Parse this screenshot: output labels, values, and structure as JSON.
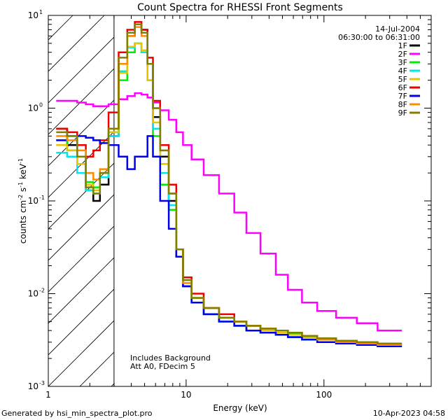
{
  "chart_data": {
    "type": "line",
    "title": "Count Spectra for RHESSI Front Segments",
    "xlabel": "Energy (keV)",
    "ylabel": "counts cm-2 s-1 keV-1",
    "ylabel_parts": {
      "base": "counts cm",
      "e1": "-2",
      "mid1": " s",
      "e2": "-1",
      "mid2": " keV",
      "e3": "-1"
    },
    "xscale": "log",
    "yscale": "log",
    "xlim": [
      1,
      600
    ],
    "ylim": [
      0.001,
      10
    ],
    "x_ticks": [
      {
        "value": 1,
        "label": "1"
      },
      {
        "value": 10,
        "label": "10"
      },
      {
        "value": 100,
        "label": "100"
      }
    ],
    "y_ticks": [
      {
        "value": 0.001,
        "base": "10",
        "exp": "-3"
      },
      {
        "value": 0.01,
        "base": "10",
        "exp": "-2"
      },
      {
        "value": 0.1,
        "base": "10",
        "exp": "-1"
      },
      {
        "value": 1,
        "base": "10",
        "exp": "0"
      },
      {
        "value": 10,
        "base": "10",
        "exp": "1"
      }
    ],
    "hatched_region": {
      "x_from": 1,
      "x_to": 3
    },
    "date": "14-Jul-2004",
    "time_range": "06:30:00 to 06:31:00",
    "annotation_lines": [
      "Includes Background",
      "Att A0, FDecim 5"
    ],
    "legend_position": "top-right",
    "series": [
      {
        "name": "1F",
        "color": "#000000",
        "values": [
          0.6,
          0.4,
          0.25,
          0.13,
          0.1,
          0.15,
          0.5,
          3,
          6,
          8,
          7,
          3,
          0.8,
          0.3,
          0.1,
          0.025,
          0.012,
          0.008,
          0.006,
          0.005,
          0.0045,
          0.004,
          0.0038,
          0.0036,
          0.0034,
          0.0032,
          0.003,
          0.0029,
          0.0028,
          0.0027
        ]
      },
      {
        "name": "2F",
        "color": "#ff00ff",
        "values": [
          1.2,
          1.2,
          1.15,
          1.1,
          1.05,
          1.05,
          1.1,
          1.25,
          1.35,
          1.45,
          1.4,
          1.3,
          1.15,
          0.95,
          0.75,
          0.55,
          0.4,
          0.28,
          0.19,
          0.12,
          0.075,
          0.045,
          0.027,
          0.016,
          0.011,
          0.008,
          0.0065,
          0.0055,
          0.0048,
          0.004
        ]
      },
      {
        "name": "3F",
        "color": "#00ee00",
        "values": [
          0.45,
          0.35,
          0.25,
          0.16,
          0.14,
          0.2,
          0.55,
          2,
          4,
          5,
          4,
          2,
          0.5,
          0.15,
          0.08,
          0.03,
          0.014,
          0.009,
          0.007,
          0.0055,
          0.005,
          0.0045,
          0.0042,
          0.004,
          0.0037,
          0.0034,
          0.0032,
          0.003,
          0.0029,
          0.0028
        ]
      },
      {
        "name": "4F",
        "color": "#00e5ee",
        "values": [
          0.33,
          0.3,
          0.2,
          0.13,
          0.12,
          0.18,
          0.5,
          2.5,
          4.5,
          5,
          4,
          2,
          0.6,
          0.2,
          0.09,
          0.03,
          0.013,
          0.008,
          0.006,
          0.005,
          0.0045,
          0.004,
          0.0038,
          0.0036,
          0.0034,
          0.0032,
          0.003,
          0.0029,
          0.0028,
          0.0027
        ]
      },
      {
        "name": "5F",
        "color": "#e5c400",
        "values": [
          0.4,
          0.35,
          0.25,
          0.15,
          0.13,
          0.2,
          0.55,
          2.4,
          4.6,
          5,
          4.2,
          2,
          0.7,
          0.25,
          0.12,
          0.03,
          0.014,
          0.009,
          0.007,
          0.0055,
          0.005,
          0.0045,
          0.004,
          0.0038,
          0.0036,
          0.0034,
          0.0032,
          0.003,
          0.0029,
          0.0028
        ]
      },
      {
        "name": "6F",
        "color": "#ee0000",
        "values": [
          0.6,
          0.55,
          0.4,
          0.3,
          0.35,
          0.45,
          0.9,
          4,
          7,
          8.5,
          7,
          3.5,
          1.2,
          0.4,
          0.15,
          0.03,
          0.015,
          0.01,
          0.007,
          0.006,
          0.005,
          0.0045,
          0.0042,
          0.004,
          0.0038,
          0.0035,
          0.0033,
          0.0031,
          0.003,
          0.0029
        ]
      },
      {
        "name": "7F",
        "color": "#0000ee",
        "values": [
          0.45,
          0.5,
          0.5,
          0.48,
          0.45,
          0.42,
          0.4,
          0.3,
          0.22,
          0.3,
          0.3,
          0.5,
          0.3,
          0.1,
          0.05,
          0.025,
          0.012,
          0.008,
          0.006,
          0.005,
          0.0045,
          0.004,
          0.0038,
          0.0036,
          0.0034,
          0.0032,
          0.003,
          0.0029,
          0.0028,
          0.0027
        ]
      },
      {
        "name": "8F",
        "color": "#ff8c00",
        "values": [
          0.5,
          0.45,
          0.35,
          0.2,
          0.17,
          0.22,
          0.6,
          3,
          6,
          7.5,
          6,
          3,
          1,
          0.35,
          0.12,
          0.03,
          0.013,
          0.009,
          0.007,
          0.0055,
          0.005,
          0.0045,
          0.0042,
          0.004,
          0.0038,
          0.0035,
          0.0032,
          0.003,
          0.0029,
          0.0028
        ]
      },
      {
        "name": "9F",
        "color": "#808000",
        "values": [
          0.55,
          0.5,
          0.3,
          0.14,
          0.12,
          0.2,
          0.6,
          3.5,
          6.5,
          8,
          6.5,
          3,
          1,
          0.35,
          0.12,
          0.03,
          0.014,
          0.009,
          0.007,
          0.0055,
          0.005,
          0.0045,
          0.0042,
          0.004,
          0.0038,
          0.0035,
          0.0033,
          0.0031,
          0.003,
          0.0029
        ]
      }
    ],
    "x": [
      1.25,
      1.5,
      1.75,
      2,
      2.25,
      2.5,
      3,
      3.5,
      4,
      4.5,
      5,
      5.5,
      6,
      7,
      8,
      9,
      10,
      12,
      15,
      20,
      25,
      30,
      40,
      50,
      60,
      80,
      100,
      150,
      200,
      300
    ]
  },
  "footer": {
    "generated_by": "Generated by hsi_min_spectra_plot.pro",
    "timestamp": "10-Apr-2023 04:58"
  }
}
